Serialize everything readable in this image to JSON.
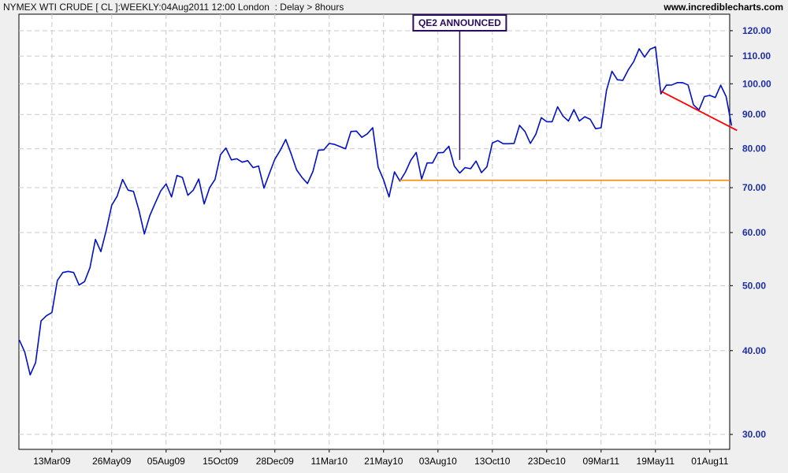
{
  "header": {
    "title": "NYMEX WTI CRUDE [ CL ]:WEEKLY:04Aug2011 12:00 London  : Delay > 8hours",
    "site": "www.incrediblecharts.com"
  },
  "chart_data": {
    "type": "line",
    "yscale": "log",
    "ylim": [
      28.5,
      127
    ],
    "grid": true,
    "yticks": [
      {
        "value": 120,
        "label": "120.00"
      },
      {
        "value": 110,
        "label": "110.00"
      },
      {
        "value": 100,
        "label": "100.00"
      },
      {
        "value": 90,
        "label": "90.00"
      },
      {
        "value": 80,
        "label": "80.00"
      },
      {
        "value": 70,
        "label": "70.00"
      },
      {
        "value": 60,
        "label": "60.00"
      },
      {
        "value": 50,
        "label": "50.00"
      },
      {
        "value": 40,
        "label": "40.00"
      },
      {
        "value": 30,
        "label": "30.00"
      }
    ],
    "xticks": [
      {
        "week": 6,
        "label": "13Mar09"
      },
      {
        "week": 17,
        "label": "26May09"
      },
      {
        "week": 27,
        "label": "05Aug09"
      },
      {
        "week": 37,
        "label": "15Oct09"
      },
      {
        "week": 47,
        "label": "28Dec09"
      },
      {
        "week": 57,
        "label": "11Mar10"
      },
      {
        "week": 67,
        "label": "21May10"
      },
      {
        "week": 77,
        "label": "03Aug10"
      },
      {
        "week": 87,
        "label": "13Oct10"
      },
      {
        "week": 97,
        "label": "23Dec10"
      },
      {
        "week": 107,
        "label": "09Mar11"
      },
      {
        "week": 117,
        "label": "19May11"
      },
      {
        "week": 127,
        "label": "01Aug11"
      }
    ],
    "series": [
      {
        "color": "#0010cc",
        "x_start_week": 0,
        "values": [
          41.5,
          39.8,
          36.8,
          38.4,
          44.3,
          45.1,
          45.6,
          50.9,
          52.3,
          52.5,
          52.3,
          50.1,
          50.7,
          53.2,
          58.6,
          56.2,
          60.5,
          65.9,
          68.0,
          72.0,
          69.4,
          69.1,
          64.8,
          59.7,
          63.6,
          66.4,
          69.2,
          70.9,
          67.8,
          73.0,
          72.5,
          68.2,
          69.4,
          72.1,
          66.2,
          70.0,
          72.0,
          78.4,
          80.2,
          77.0,
          77.3,
          76.4,
          76.8,
          75.0,
          75.4,
          69.9,
          73.5,
          77.2,
          79.6,
          82.6,
          78.6,
          74.4,
          72.5,
          71.0,
          74.0,
          79.6,
          79.7,
          81.5,
          81.2,
          80.6,
          80.0,
          84.9,
          85.0,
          83.2,
          84.2,
          86.0,
          75.1,
          71.9,
          67.8,
          73.9,
          71.6,
          73.8,
          76.9,
          79.0,
          72.1,
          76.2,
          76.2,
          78.9,
          79.0,
          80.7,
          75.4,
          73.6,
          75.0,
          74.7,
          76.7,
          73.7,
          75.2,
          81.6,
          82.3,
          81.4,
          81.4,
          81.5,
          86.7,
          84.9,
          81.5,
          84.1,
          89.0,
          87.8,
          87.8,
          92.4,
          89.5,
          88.0,
          91.5,
          88.0,
          89.3,
          88.5,
          85.7,
          86.0,
          97.8,
          104.4,
          101.4,
          101.2,
          104.9,
          107.9,
          112.8,
          109.6,
          112.6,
          113.5,
          96.6,
          99.5,
          99.6,
          100.4,
          100.4,
          99.6,
          93.0,
          91.4,
          95.7,
          96.1,
          95.4,
          99.5,
          95.7,
          86.6
        ]
      }
    ],
    "annotations": [
      {
        "type": "label",
        "text": "QE2 ANNOUNCED",
        "week": 81,
        "value": 77.0
      },
      {
        "type": "hline",
        "color": "#ff8800",
        "value": 71.8,
        "x_from_week": 70,
        "x_to_week": 140
      },
      {
        "type": "trendline",
        "color": "#ff0000",
        "from": {
          "week": 118,
          "value": 97.5
        },
        "to": {
          "week": 132,
          "value": 85.2
        }
      }
    ]
  }
}
